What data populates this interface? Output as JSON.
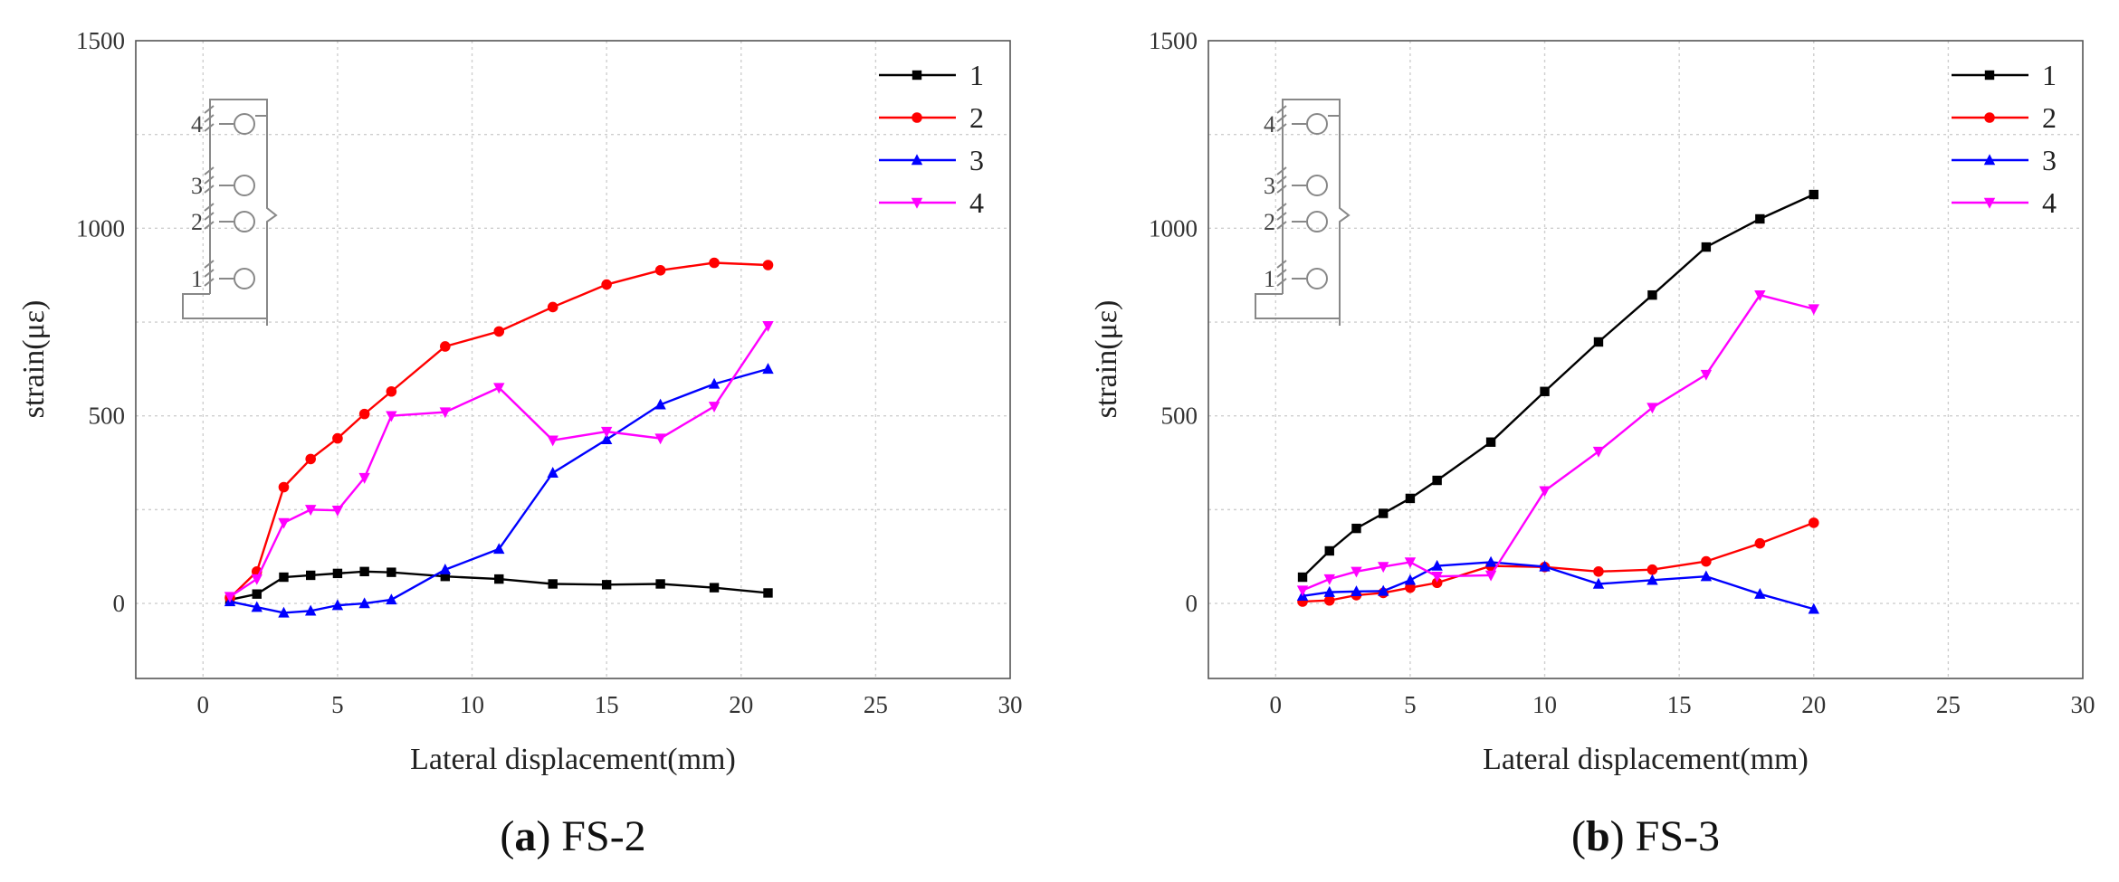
{
  "figure": {
    "panels": [
      {
        "caption_letter": "a",
        "caption_open": "(",
        "caption_close": ")",
        "caption_name": " FS-2"
      },
      {
        "caption_letter": "b",
        "caption_open": "(",
        "caption_close": ")",
        "caption_name": " FS-3"
      }
    ],
    "inset_labels": [
      "1",
      "2",
      "3",
      "4"
    ]
  },
  "chart_data": [
    {
      "type": "line",
      "title": "(a) FS-2",
      "xlabel": "Lateral displacement(mm)",
      "ylabel": "strain(με)",
      "xlim": [
        -2.5,
        30
      ],
      "ylim": [
        -200,
        1500
      ],
      "xticks": [
        0,
        5,
        10,
        15,
        20,
        25,
        30
      ],
      "yticks": [
        0,
        500,
        1000,
        1500
      ],
      "grid": true,
      "legend_position": "top-right",
      "series": [
        {
          "name": "1",
          "color": "#000000",
          "marker": "square",
          "x": [
            1,
            2,
            3,
            4,
            5,
            6,
            7,
            9,
            11,
            13,
            15,
            17,
            19,
            21
          ],
          "values": [
            10,
            25,
            70,
            75,
            80,
            85,
            83,
            72,
            65,
            52,
            50,
            52,
            42,
            28
          ]
        },
        {
          "name": "2",
          "color": "#ff0000",
          "marker": "circle",
          "x": [
            1,
            2,
            3,
            4,
            5,
            6,
            7,
            9,
            11,
            13,
            15,
            17,
            19,
            21
          ],
          "values": [
            15,
            85,
            310,
            385,
            440,
            505,
            565,
            685,
            725,
            790,
            850,
            888,
            908,
            902
          ]
        },
        {
          "name": "3",
          "color": "#0000ff",
          "marker": "triangle-up",
          "x": [
            1,
            2,
            3,
            4,
            5,
            6,
            7,
            9,
            11,
            13,
            15,
            17,
            19,
            21
          ],
          "values": [
            5,
            -10,
            -25,
            -20,
            -5,
            0,
            10,
            90,
            145,
            348,
            437,
            530,
            585,
            625
          ]
        },
        {
          "name": "4",
          "color": "#ff00ff",
          "marker": "triangle-down",
          "x": [
            1,
            2,
            3,
            4,
            5,
            6,
            7,
            9,
            11,
            13,
            15,
            17,
            19,
            21
          ],
          "values": [
            18,
            65,
            215,
            250,
            248,
            335,
            500,
            510,
            575,
            435,
            458,
            440,
            525,
            740
          ]
        }
      ]
    },
    {
      "type": "line",
      "title": "(b) FS-3",
      "xlabel": "Lateral displacement(mm)",
      "ylabel": "strain(με)",
      "xlim": [
        -2.5,
        30
      ],
      "ylim": [
        -200,
        1500
      ],
      "xticks": [
        0,
        5,
        10,
        15,
        20,
        25,
        30
      ],
      "yticks": [
        0,
        500,
        1000,
        1500
      ],
      "grid": true,
      "legend_position": "top-right",
      "series": [
        {
          "name": "1",
          "color": "#000000",
          "marker": "square",
          "x": [
            1,
            2,
            3,
            4,
            5,
            6,
            8,
            10,
            12,
            14,
            16,
            18,
            20
          ],
          "values": [
            70,
            140,
            200,
            240,
            280,
            328,
            430,
            565,
            697,
            822,
            950,
            1025,
            1090
          ]
        },
        {
          "name": "2",
          "color": "#ff0000",
          "marker": "circle",
          "x": [
            1,
            2,
            3,
            4,
            5,
            6,
            8,
            10,
            12,
            14,
            16,
            18,
            20
          ],
          "values": [
            5,
            8,
            22,
            28,
            42,
            55,
            100,
            97,
            85,
            90,
            112,
            160,
            215
          ]
        },
        {
          "name": "3",
          "color": "#0000ff",
          "marker": "triangle-up",
          "x": [
            1,
            2,
            3,
            4,
            5,
            6,
            8,
            10,
            12,
            14,
            16,
            18,
            20
          ],
          "values": [
            20,
            30,
            32,
            33,
            62,
            100,
            110,
            98,
            52,
            62,
            72,
            25,
            -15
          ]
        },
        {
          "name": "4",
          "color": "#ff00ff",
          "marker": "triangle-down",
          "x": [
            1,
            2,
            3,
            4,
            5,
            6,
            8,
            10,
            12,
            14,
            16,
            18,
            20
          ],
          "values": [
            35,
            65,
            85,
            98,
            110,
            72,
            75,
            300,
            405,
            522,
            610,
            822,
            785
          ]
        }
      ]
    }
  ]
}
